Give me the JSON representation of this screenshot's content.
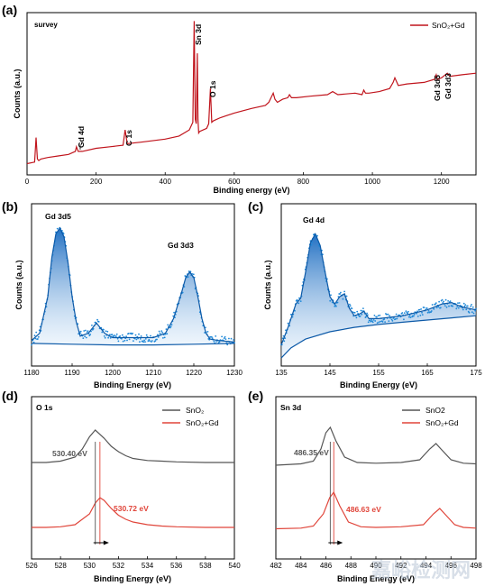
{
  "chart_data": [
    {
      "id": "a",
      "type": "line",
      "panel_label": "(a)",
      "inner_label": "survey",
      "xlabel": "Binding energy (eV)",
      "ylabel": "Counts (a.u.)",
      "xlim": [
        0,
        1300
      ],
      "ylim": [
        0,
        100
      ],
      "xticks": [
        0,
        200,
        400,
        600,
        800,
        1000,
        1200
      ],
      "legend": "SnO₂+Gd",
      "series_color": "#c0141c",
      "series": [
        {
          "name": "SnO₂+Gd",
          "x": [
            0,
            22,
            26,
            30,
            34,
            40,
            60,
            90,
            120,
            140,
            143,
            148,
            160,
            200,
            240,
            278,
            284,
            290,
            330,
            400,
            440,
            470,
            480,
            484,
            487,
            490,
            493,
            495,
            497,
            500,
            510,
            520,
            526,
            531,
            535,
            540,
            560,
            600,
            650,
            690,
            700,
            713,
            718,
            725,
            740,
            755,
            760,
            766,
            780,
            820,
            870,
            885,
            900,
            950,
            970,
            975,
            980,
            990,
            1020,
            1050,
            1060,
            1065,
            1075,
            1100,
            1150,
            1180,
            1185,
            1188,
            1200,
            1217,
            1225,
            1260,
            1300
          ],
          "y": [
            5,
            6,
            22,
            8,
            7,
            8,
            9,
            10,
            11,
            13,
            16,
            13,
            13,
            15,
            16,
            17,
            27,
            18,
            19,
            21,
            23,
            27,
            32,
            98,
            34,
            31,
            77,
            34,
            25,
            26,
            27,
            28,
            31,
            54,
            32,
            33,
            35,
            38,
            41,
            43,
            45,
            51,
            47,
            45,
            47,
            48,
            50,
            48,
            48,
            49,
            50,
            52,
            50,
            51,
            50,
            53,
            51,
            51,
            52,
            54,
            58,
            61,
            56,
            57,
            58,
            60,
            63,
            60,
            61,
            64,
            62,
            63,
            64
          ]
        }
      ],
      "annotations": [
        "Gd 4d",
        "C 1s",
        "Sn 3d",
        "O 1s",
        "Gd 3d5",
        "Gd 3d3"
      ]
    },
    {
      "id": "b",
      "type": "line",
      "panel_label": "(b)",
      "xlabel": "Binding Energy (eV)",
      "ylabel": "Counts (a.u.)",
      "xlim": [
        1180,
        1230
      ],
      "ylim": [
        0,
        100
      ],
      "xticks": [
        1180,
        1190,
        1200,
        1210,
        1220,
        1230
      ],
      "series_color": "#1a73c4",
      "series": [
        {
          "name": "",
          "x": [
            1180,
            1182,
            1184,
            1185,
            1186,
            1187,
            1188,
            1189,
            1190,
            1191,
            1192,
            1194,
            1196,
            1198,
            1200,
            1205,
            1210,
            1213,
            1215,
            1217,
            1218,
            1219,
            1220,
            1221,
            1222,
            1223,
            1224,
            1226,
            1230
          ],
          "y": [
            15,
            20,
            45,
            72,
            88,
            92,
            86,
            68,
            45,
            28,
            18,
            20,
            27,
            20,
            17,
            17,
            17,
            20,
            30,
            48,
            58,
            62,
            58,
            45,
            30,
            20,
            16,
            15,
            14
          ]
        },
        {
          "name": "",
          "x": [
            1180,
            1190,
            1200,
            1210,
            1220,
            1230
          ],
          "y": [
            13,
            12.5,
            12,
            12,
            12.5,
            13
          ]
        }
      ],
      "annotations": [
        "Gd 3d5",
        "Gd 3d3"
      ]
    },
    {
      "id": "c",
      "type": "line",
      "panel_label": "(c)",
      "xlabel": "Binding Energy (eV)",
      "ylabel": "Counts (a.u.)",
      "xlim": [
        135,
        175
      ],
      "ylim": [
        0,
        100
      ],
      "xticks": [
        135,
        145,
        155,
        165,
        175
      ],
      "series_color": "#1a73c4",
      "series": [
        {
          "name": "",
          "x": [
            135,
            136.5,
            138,
            139,
            140,
            141,
            142,
            143,
            144,
            145,
            146,
            147,
            148,
            149,
            150,
            151,
            152,
            153,
            155,
            160,
            165,
            168,
            170,
            172,
            175
          ],
          "y": [
            12,
            25,
            40,
            44,
            62,
            82,
            88,
            80,
            62,
            45,
            40,
            45,
            47,
            37,
            32,
            33,
            35,
            30,
            30,
            32,
            36,
            40,
            41,
            38,
            36
          ]
        },
        {
          "name": "",
          "x": [
            135,
            137,
            140,
            145,
            150,
            155,
            160,
            165,
            170,
            175
          ],
          "y": [
            3,
            10,
            16,
            21,
            24,
            26,
            27.5,
            29,
            30.5,
            32
          ]
        }
      ],
      "annotations": [
        "Gd 4d"
      ]
    },
    {
      "id": "d",
      "type": "line",
      "panel_label": "(d)",
      "inner_label": "O 1s",
      "xlabel": "Binding Energy (eV)",
      "xlim": [
        526,
        540
      ],
      "ylim": [
        0,
        100
      ],
      "xticks": [
        526,
        528,
        530,
        532,
        534,
        536,
        538,
        540
      ],
      "series": [
        {
          "name": "SnO₂",
          "color": "#555555",
          "x": [
            526,
            527,
            528,
            529,
            529.5,
            530,
            530.4,
            531,
            531.5,
            532,
            532.5,
            533,
            534,
            535,
            536,
            538,
            540
          ],
          "y": [
            66,
            66,
            67,
            70,
            76,
            85,
            90,
            84,
            78,
            74,
            71,
            69,
            67.5,
            67,
            66.5,
            66,
            66
          ]
        },
        {
          "name": "SnO₂+Gd",
          "color": "#e0453a",
          "x": [
            526,
            527,
            528,
            529,
            530,
            530.4,
            530.72,
            531,
            531.5,
            532,
            532.5,
            533,
            534,
            535,
            536,
            538,
            540
          ],
          "y": [
            18,
            18,
            18.5,
            20,
            28,
            36,
            40,
            38,
            32,
            27,
            24,
            22,
            20,
            19,
            18.5,
            18,
            18
          ]
        }
      ],
      "peak_labels": [
        "530.40 eV",
        "530.72 eV"
      ]
    },
    {
      "id": "e",
      "type": "line",
      "panel_label": "(e)",
      "inner_label": "Sn 3d",
      "xlabel": "Binding Energy (eV)",
      "xlim": [
        482,
        498
      ],
      "ylim": [
        0,
        100
      ],
      "xticks": [
        482,
        484,
        486,
        488,
        490,
        492,
        494,
        496,
        498
      ],
      "series": [
        {
          "name": "SnO2",
          "color": "#555555",
          "x": [
            482,
            484,
            485,
            485.6,
            486,
            486.35,
            486.8,
            487.5,
            488.5,
            490,
            492,
            493.5,
            494.3,
            494.8,
            495.2,
            496,
            497,
            498
          ],
          "y": [
            64,
            65,
            67,
            76,
            88,
            92,
            82,
            70,
            66,
            65.5,
            66,
            68,
            76,
            80,
            76,
            68,
            65.5,
            65
          ]
        },
        {
          "name": "SnO₂+Gd",
          "color": "#e0453a",
          "x": [
            482,
            484,
            485,
            485.8,
            486.3,
            486.63,
            487.1,
            487.8,
            488.8,
            490,
            492,
            493.8,
            494.6,
            495.1,
            495.5,
            496.3,
            497,
            498
          ],
          "y": [
            17,
            17.5,
            19,
            28,
            40,
            44,
            34,
            22,
            18.5,
            18,
            18.5,
            20,
            28,
            32,
            28,
            20,
            18,
            17.5
          ]
        }
      ],
      "peak_labels": [
        "486.35 eV",
        "486.63 eV"
      ]
    }
  ],
  "watermark": "嘉峪检测网"
}
